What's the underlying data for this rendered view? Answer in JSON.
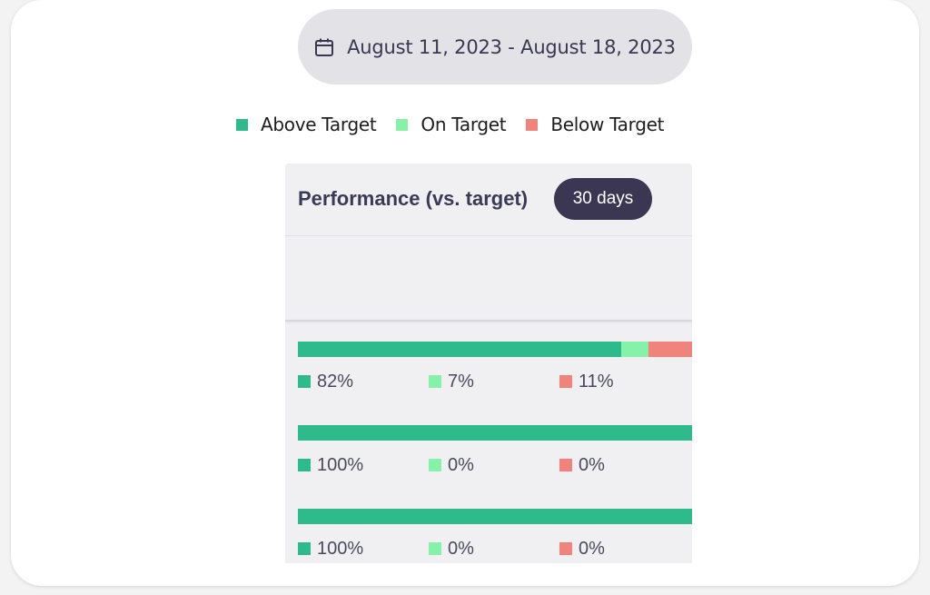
{
  "colors": {
    "above": "#2fba8c",
    "on": "#86f1a8",
    "below": "#f0847c"
  },
  "date_range": {
    "icon": "calendar-icon",
    "label": "August 11, 2023 - August 18, 2023"
  },
  "legend": [
    {
      "label": "Above Target",
      "key": "above"
    },
    {
      "label": "On Target",
      "key": "on"
    },
    {
      "label": "Below Target",
      "key": "below"
    }
  ],
  "panel": {
    "title": "Performance (vs. target)",
    "period": "30 days"
  },
  "rows": [
    {
      "above": 82,
      "on": 7,
      "below": 11,
      "above_label": "82%",
      "on_label": "7%",
      "below_label": "11%"
    },
    {
      "above": 100,
      "on": 0,
      "below": 0,
      "above_label": "100%",
      "on_label": "0%",
      "below_label": "0%"
    },
    {
      "above": 100,
      "on": 0,
      "below": 0,
      "above_label": "100%",
      "on_label": "0%",
      "below_label": "0%"
    }
  ]
}
